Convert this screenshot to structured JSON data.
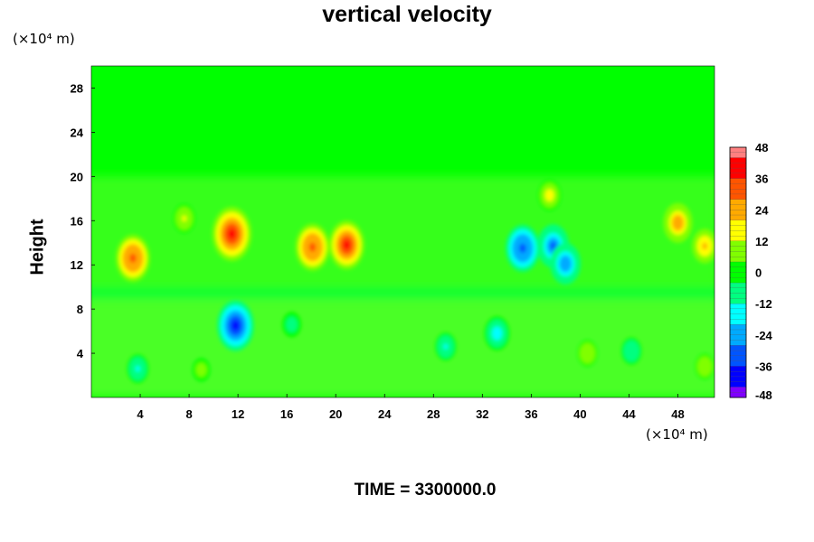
{
  "chart_data": {
    "type": "heatmap",
    "title": "vertical velocity",
    "ylabel": "Height",
    "x_unit": "(×10⁴ m)",
    "y_unit": "(×10⁴ m)",
    "footer": "TIME = 3300000.0",
    "xlim": [
      0,
      51
    ],
    "ylim": [
      0,
      30
    ],
    "x_ticks": [
      "4",
      "8",
      "12",
      "16",
      "20",
      "24",
      "28",
      "32",
      "36",
      "40",
      "44",
      "48"
    ],
    "y_ticks": [
      "4",
      "8",
      "12",
      "16",
      "20",
      "24",
      "28"
    ],
    "colorbar": {
      "range": [
        -48,
        48
      ],
      "ticks": [
        "48",
        "36",
        "24",
        "12",
        "0",
        "-12",
        "-24",
        "-36",
        "-48"
      ],
      "colors": [
        "#7f00ff",
        "#0000ff",
        "#0055ff",
        "#00aaff",
        "#00ffff",
        "#00ff80",
        "#00ff00",
        "#80ff00",
        "#ffff00",
        "#ffaa00",
        "#ff5500",
        "#ff0000",
        "#ff8080"
      ]
    },
    "features": [
      {
        "x": 3.4,
        "y": 12.6,
        "value": 34
      },
      {
        "x": 11.5,
        "y": 14.8,
        "value": 42
      },
      {
        "x": 18.1,
        "y": 13.6,
        "value": 34
      },
      {
        "x": 20.9,
        "y": 13.8,
        "value": 36
      },
      {
        "x": 11.8,
        "y": 6.5,
        "value": -38
      },
      {
        "x": 35.3,
        "y": 13.5,
        "value": -34
      },
      {
        "x": 37.8,
        "y": 13.7,
        "value": -30
      },
      {
        "x": 38.8,
        "y": 12.1,
        "value": -28
      },
      {
        "x": 33.2,
        "y": 5.8,
        "value": -20
      },
      {
        "x": 48.0,
        "y": 15.8,
        "value": 26
      },
      {
        "x": 50.2,
        "y": 13.7,
        "value": 20
      },
      {
        "x": 37.5,
        "y": 18.3,
        "value": 16
      },
      {
        "x": 7.6,
        "y": 16.2,
        "value": 14
      },
      {
        "x": 40.6,
        "y": 4.0,
        "value": 11
      },
      {
        "x": 50.2,
        "y": 2.8,
        "value": 10
      },
      {
        "x": 9.0,
        "y": 2.5,
        "value": 8
      },
      {
        "x": 3.8,
        "y": 2.6,
        "value": -14
      },
      {
        "x": 29.0,
        "y": 4.6,
        "value": -13
      },
      {
        "x": 44.2,
        "y": 4.2,
        "value": -12
      },
      {
        "x": 16.4,
        "y": 6.6,
        "value": -10
      }
    ]
  }
}
